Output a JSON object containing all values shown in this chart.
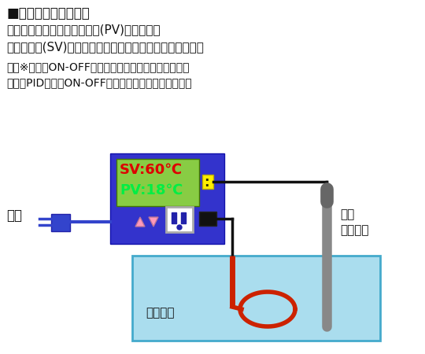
{
  "title_line1": "■温度調節器の仕組み",
  "text_line2": "　温度センサーで現在の温度(PV)を感知し、",
  "text_line3": "　設定温度(SV)に達するまでヒーターに電気を流します。",
  "text_line4": "　　※電気のON-OFFの度合いを温度制御方式と呼び、",
  "text_line5": "　　　PID制御、ON-OFF制御などの方式があります。",
  "sv_label": "SV:60℃",
  "pv_label": "PV:18℃",
  "dengen_label": "電源",
  "sensor_label1": "温度",
  "sensor_label2": "センサー",
  "heater_label": "ヒーター",
  "bg_color": "#ffffff",
  "controller_body_color": "#3333cc",
  "display_bg_color": "#88cc44",
  "sv_text_color": "#dd0000",
  "pv_text_color": "#00ee44",
  "water_color": "#aaddee",
  "water_border": "#44aacc",
  "heater_coil_color": "#cc2200",
  "sensor_color": "#888888",
  "wire_color": "#111111",
  "plug_color": "#3344cc",
  "arrow_button_color": "#ff99bb",
  "outlet_color": "#ffffff",
  "yellow_dot_color": "#ffee00"
}
